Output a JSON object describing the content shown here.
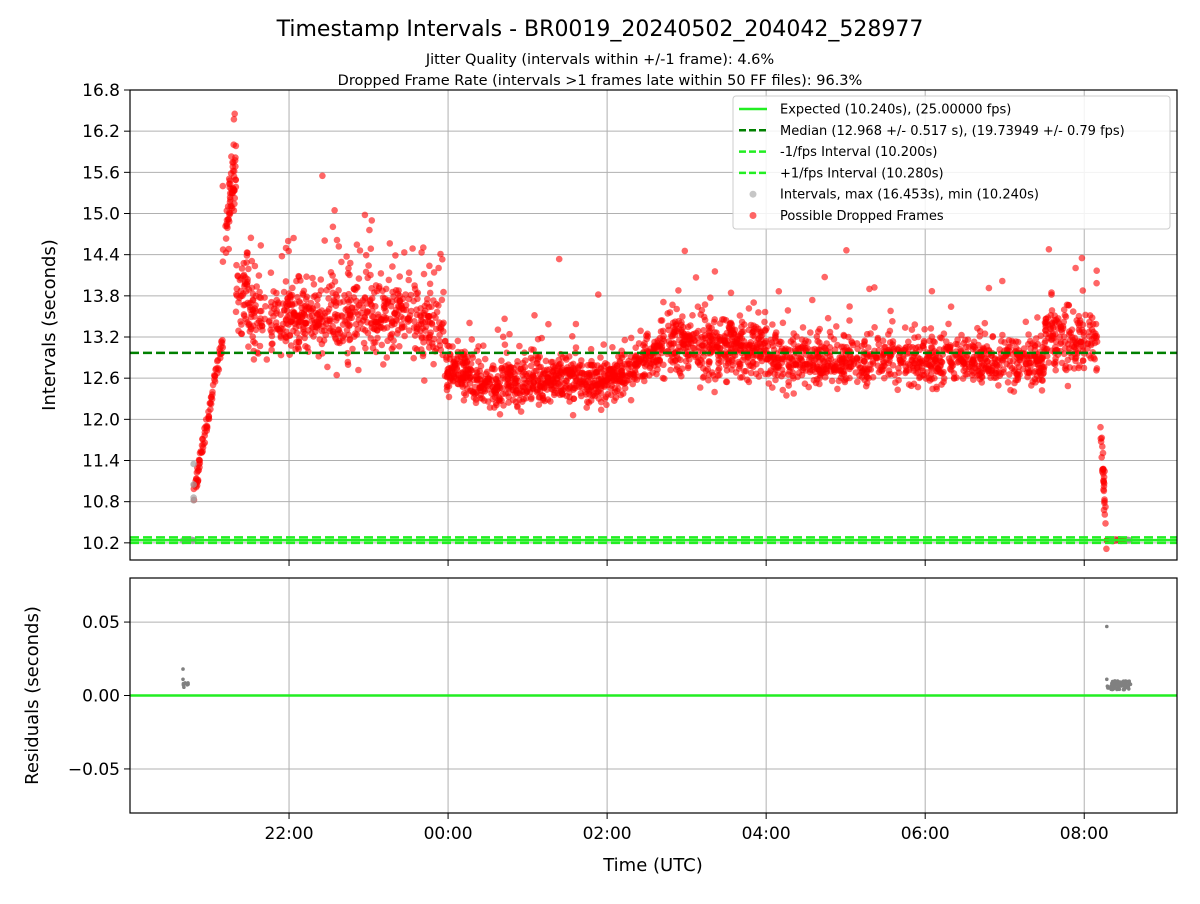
{
  "chart_data": {
    "type": "scatter",
    "title": "Timestamp Intervals - BR0019_20240502_204042_528977",
    "subtitle_lines": [
      "Jitter Quality (intervals within +/-1 frame): 4.6%",
      "Dropped Frame Rate (intervals >1 frames late within 50 FF files): 96.3%"
    ],
    "xlabel": "Time (UTC)",
    "xlim": [
      "2024-05-02 20:00",
      "2024-05-03 09:10"
    ],
    "x_ticks": [
      {
        "t": "2024-05-02 22:00",
        "label": "22:00"
      },
      {
        "t": "2024-05-03 00:00",
        "label": "00:00"
      },
      {
        "t": "2024-05-03 02:00",
        "label": "02:00"
      },
      {
        "t": "2024-05-03 04:00",
        "label": "04:00"
      },
      {
        "t": "2024-05-03 06:00",
        "label": "06:00"
      },
      {
        "t": "2024-05-03 08:00",
        "label": "08:00"
      }
    ],
    "top_panel": {
      "ylabel": "Intervals (seconds)",
      "ylim": [
        9.95,
        16.8
      ],
      "y_ticks": [
        "10.2",
        "10.8",
        "11.4",
        "12.0",
        "12.6",
        "13.2",
        "13.8",
        "14.4",
        "15.0",
        "15.6",
        "16.2",
        "16.8"
      ],
      "grid": true,
      "legend_position": "top-right",
      "lines": [
        {
          "name": "Expected (10.240s), (25.00000 fps)",
          "y": 10.24,
          "color": "#22ee22",
          "style": "solid"
        },
        {
          "name": "Median (12.968 +/- 0.517 s), (19.73949 +/- 0.79 fps)",
          "y": 12.968,
          "color": "#008000",
          "style": "dashed"
        },
        {
          "name": "-1/fps Interval (10.200s)",
          "y": 10.2,
          "color": "#22ee22",
          "style": "dashed"
        },
        {
          "name": "+1/fps Interval (10.280s)",
          "y": 10.28,
          "color": "#22ee22",
          "style": "dashed"
        }
      ],
      "scatter_series": [
        {
          "name": "Intervals, max (16.453s), min (10.240s)",
          "color": "#a0a0a0"
        },
        {
          "name": "Possible Dropped Frames",
          "color": "#ff0000"
        }
      ],
      "segments": [
        {
          "t0": "2024-05-02 20:40",
          "t1": "2024-05-02 20:48",
          "y0": 10.24,
          "y1": 10.24,
          "spread": 0.01,
          "n": 20
        },
        {
          "t0": "2024-05-02 20:48",
          "t1": "2024-05-02 21:10",
          "y0": 10.9,
          "y1": 13.2,
          "spread": 0.15,
          "n": 80
        },
        {
          "t0": "2024-05-02 21:10",
          "t1": "2024-05-02 21:20",
          "y0": 14.5,
          "y1": 15.6,
          "spread": 0.45,
          "n": 60
        },
        {
          "t0": "2024-05-02 21:20",
          "t1": "2024-05-02 21:50",
          "y0": 13.8,
          "y1": 13.4,
          "spread": 0.55,
          "n": 120
        },
        {
          "t0": "2024-05-02 21:50",
          "t1": "2024-05-02 23:20",
          "y0": 13.5,
          "y1": 13.5,
          "spread": 0.5,
          "n": 420
        },
        {
          "t0": "2024-05-02 23:20",
          "t1": "2024-05-02 23:58",
          "y0": 13.6,
          "y1": 13.2,
          "spread": 0.5,
          "n": 150
        },
        {
          "t0": "2024-05-02 23:58",
          "t1": "2024-05-03 00:40",
          "y0": 12.8,
          "y1": 12.4,
          "spread": 0.32,
          "n": 220
        },
        {
          "t0": "2024-05-03 00:40",
          "t1": "2024-05-03 02:00",
          "y0": 12.55,
          "y1": 12.55,
          "spread": 0.32,
          "n": 420
        },
        {
          "t0": "2024-05-03 02:00",
          "t1": "2024-05-03 02:40",
          "y0": 12.6,
          "y1": 13.0,
          "spread": 0.3,
          "n": 200
        },
        {
          "t0": "2024-05-03 02:40",
          "t1": "2024-05-03 04:00",
          "y0": 13.1,
          "y1": 13.0,
          "spread": 0.4,
          "n": 420
        },
        {
          "t0": "2024-05-03 04:00",
          "t1": "2024-05-03 07:30",
          "y0": 12.85,
          "y1": 12.85,
          "spread": 0.32,
          "n": 900
        },
        {
          "t0": "2024-05-03 07:30",
          "t1": "2024-05-03 08:10",
          "y0": 13.2,
          "y1": 13.1,
          "spread": 0.4,
          "n": 180
        },
        {
          "t0": "2024-05-03 08:12",
          "t1": "2024-05-03 08:17",
          "y0": 11.9,
          "y1": 10.3,
          "spread": 0.25,
          "n": 30
        },
        {
          "t0": "2024-05-03 08:17",
          "t1": "2024-05-03 08:35",
          "y0": 10.24,
          "y1": 10.24,
          "spread": 0.01,
          "n": 60
        }
      ]
    },
    "bottom_panel": {
      "ylabel": "Residuals (seconds)",
      "ylim": [
        -0.08,
        0.08
      ],
      "y_ticks": [
        "0.05",
        "0.00",
        "−0.05"
      ],
      "y_tick_values": [
        0.05,
        0.0,
        -0.05
      ],
      "grid": true,
      "zero_line": {
        "y": 0.0,
        "color": "#22ee22"
      },
      "residual_clusters": [
        {
          "t0": "2024-05-02 20:40",
          "t1": "2024-05-02 20:45",
          "y": 0.007,
          "n": 8,
          "extra": [
            0.018,
            0.011
          ]
        },
        {
          "t0": "2024-05-03 08:17",
          "t1": "2024-05-03 08:35",
          "y": 0.007,
          "n": 70,
          "extra": [
            0.047,
            0.011
          ]
        }
      ]
    }
  }
}
